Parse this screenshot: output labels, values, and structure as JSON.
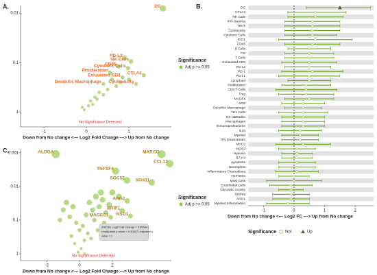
{
  "chart_data": [
    {
      "type": "scatter",
      "panel_label": "A.",
      "xlabel": "Down from No change <--- Log2 Fold Change ---> Up from No change",
      "xlim": [
        -1.55,
        2.0
      ],
      "xticks": [
        -1,
        0,
        1
      ],
      "ylim": [
        0.007,
        2
      ],
      "yticks": [
        0.01,
        0.1,
        1
      ],
      "y_log": true,
      "y_reversed": true,
      "legend_title": "Significance",
      "annotation": "No Significance Detected",
      "series": [
        {
          "name": "Adj p >= 0.05",
          "color": "#8dc63f",
          "label_color": "#f26522",
          "x": [
            1.8,
            0.9,
            1.05,
            0.75,
            0.98,
            0.56,
            0.85,
            1.35,
            0.4,
            1.17,
            0.6,
            0.7,
            0.5,
            0.3,
            0.2,
            0.1,
            0.05,
            -0.1,
            0.25,
            0.4,
            -0.05,
            0.15,
            0.8,
            1.0
          ],
          "values": [
            0.008,
            0.08,
            0.095,
            0.12,
            0.13,
            0.16,
            0.2,
            0.18,
            0.27,
            0.27,
            0.22,
            0.3,
            0.35,
            0.4,
            0.5,
            0.6,
            0.75,
            0.8,
            0.55,
            0.45,
            0.9,
            0.7,
            0.25,
            0.22
          ],
          "labels": [
            "DC",
            "PD-L2",
            "NK Cells",
            "CD45",
            "Cytotoxic Cells",
            "Proliferation",
            "Exhausted CD8",
            "CTLA4",
            "Dendritic Macrophage",
            "Cytotoxicity",
            null,
            null,
            null,
            null,
            null,
            null,
            null,
            null,
            null,
            null,
            null,
            null,
            null,
            null
          ]
        }
      ]
    },
    {
      "type": "forest",
      "panel_label": "B.",
      "xlabel": "Down from No change <--- Log2 FC ---> Up from No change",
      "xlim": [
        -1.5,
        2.6
      ],
      "xticks": [
        -1,
        0,
        1,
        2
      ],
      "color": "#6ab023",
      "up_color": "#3d6b1e",
      "legend_title": "Significance",
      "legend": [
        {
          "name": "Not",
          "shape": "circle"
        },
        {
          "name": "Up",
          "shape": "triangle"
        }
      ],
      "categories": [
        "DC",
        "CTLA4",
        "NK Cells",
        "IFN Gamma",
        "TIGIT",
        "Cytotoxicity",
        "Cytotoxic Cells",
        "IDO1",
        "CD45",
        "B Cells",
        "TIS",
        "T Cells",
        "Exhausted CD8",
        "PD-L2",
        "PD-1",
        "PD-L1",
        "Lymphoid",
        "Proliferation",
        "CD8 T Cells",
        "Treg",
        "MAGEs",
        "APM",
        "Dendritic Macrophage",
        "TH1 Cells",
        "NK CD56dim",
        "Macrophages",
        "Immunoproteasome",
        "IL10",
        "Myeloid",
        "IFN Downstream",
        "MHC2",
        "NOS2",
        "Hypoxia",
        "B7-H3",
        "Apoptosis",
        "Neutrophils",
        "Inflammatory Chemokines",
        "TGF-Beta",
        "Mast Cells",
        "Endothelial Cells",
        "Glycolytic Activity",
        "Stroma",
        "ARG1",
        "Myeloid Inflammation"
      ],
      "values": [
        1.5,
        0.7,
        0.7,
        0.6,
        0.6,
        0.6,
        0.6,
        0.7,
        0.6,
        0.5,
        0.5,
        0.5,
        0.5,
        0.5,
        0.6,
        0.5,
        0.5,
        0.4,
        0.4,
        0.4,
        0.5,
        0.3,
        0.3,
        0.3,
        0.3,
        0.3,
        0.3,
        0.2,
        0.2,
        0.2,
        0.3,
        0.1,
        0.1,
        0.1,
        0.1,
        0.1,
        0.1,
        0.0,
        0.0,
        -0.1,
        -0.1,
        -0.1,
        -0.1,
        -0.2
      ],
      "ci_low": [
        0.4,
        -0.2,
        -0.2,
        -0.3,
        -0.3,
        -0.3,
        -0.3,
        -0.5,
        -0.3,
        -0.2,
        -0.3,
        -0.3,
        -0.4,
        -0.3,
        -0.4,
        -0.5,
        -0.2,
        -0.4,
        -0.6,
        -0.5,
        -0.3,
        -0.4,
        -0.3,
        -0.5,
        -0.4,
        -0.4,
        -0.4,
        -0.5,
        -0.4,
        -0.4,
        -0.6,
        -0.5,
        -0.4,
        -0.4,
        -0.5,
        -0.5,
        -0.6,
        -0.5,
        -0.9,
        -0.8,
        -0.5,
        -0.7,
        -0.7,
        -0.9
      ],
      "ci_high": [
        2.5,
        1.7,
        1.6,
        1.5,
        1.5,
        1.5,
        1.4,
        1.9,
        1.5,
        1.2,
        1.3,
        1.3,
        1.4,
        1.2,
        1.6,
        1.5,
        1.2,
        1.2,
        1.4,
        1.3,
        1.3,
        1.0,
        0.9,
        1.1,
        1.0,
        1.0,
        1.0,
        0.9,
        0.8,
        0.8,
        1.2,
        0.7,
        0.6,
        0.6,
        0.7,
        0.7,
        0.8,
        0.5,
        0.9,
        0.6,
        0.3,
        0.5,
        0.5,
        0.5
      ],
      "significance": [
        "Up",
        "Not",
        "Not",
        "Not",
        "Not",
        "Not",
        "Not",
        "Not",
        "Not",
        "Not",
        "Not",
        "Not",
        "Not",
        "Not",
        "Not",
        "Not",
        "Not",
        "Not",
        "Not",
        "Not",
        "Not",
        "Not",
        "Not",
        "Not",
        "Not",
        "Not",
        "Not",
        "Not",
        "Not",
        "Not",
        "Not",
        "Not",
        "Not",
        "Not",
        "Not",
        "Not",
        "Not",
        "Not",
        "Not",
        "Not",
        "Not",
        "Not",
        "Not",
        "Not"
      ]
    },
    {
      "type": "scatter",
      "panel_label": "C.",
      "xlabel": "Down from No change <--- Log2 Fold Change ---> Up from No change",
      "xlim": [
        -3.6,
        5.6
      ],
      "xticks": [
        -2,
        0,
        2
      ],
      "ylim": [
        0.0008,
        1.6
      ],
      "yticks": [
        0.001,
        0.01,
        0.1,
        1
      ],
      "y_log": true,
      "y_reversed": true,
      "legend_title": "Significance",
      "annotation": "No Significance Detected",
      "tooltip": [
        "ZNF78 | Log2 Fold Change = 0.60584 |",
        "Unadjusted p-value = 0.10847 | Adjusted p-",
        "value = 1"
      ],
      "series": [
        {
          "name": "Adj p >= 0.05",
          "color": "#8dc63f",
          "label_color": "#b07d12",
          "x": [
            -1.45,
            5.0,
            2.2,
            5.5,
            2.9,
            4.4,
            2.9,
            2.6,
            1.9,
            3.1,
            -1.0,
            -0.8,
            -0.6,
            -0.4,
            -0.2,
            0.0,
            0.2,
            0.4,
            0.6,
            0.8,
            1.0,
            1.2,
            1.4,
            1.6,
            1.8,
            2.0,
            -0.5,
            0.3,
            0.9,
            1.5,
            -0.3,
            0.5,
            1.1,
            0.1,
            0.7,
            -0.1,
            0.3,
            2.4,
            -1.2,
            1.3
          ],
          "values": [
            0.0011,
            0.0011,
            0.0035,
            0.0021,
            0.0066,
            0.0076,
            0.027,
            0.052,
            0.083,
            0.076,
            0.05,
            0.03,
            0.08,
            0.04,
            0.12,
            0.2,
            0.15,
            0.07,
            0.03,
            0.05,
            0.02,
            0.04,
            0.025,
            0.06,
            0.035,
            0.015,
            0.3,
            0.4,
            0.1,
            0.12,
            0.5,
            0.25,
            0.2,
            0.7,
            0.35,
            0.9,
            1.0,
            0.02,
            0.1,
            0.015
          ],
          "labels": [
            "ALDOA",
            "MARCO",
            "TNFSF4",
            "CCL13",
            "SOCS1",
            "SOX11",
            "ARG2",
            "BRIP1",
            "MAGEC1",
            "NSD1",
            null,
            null,
            null,
            null,
            null,
            null,
            null,
            null,
            null,
            null,
            null,
            null,
            null,
            null,
            null,
            null,
            null,
            null,
            null,
            null,
            null,
            null,
            null,
            null,
            null,
            null,
            null,
            null,
            null,
            null
          ]
        }
      ]
    }
  ]
}
